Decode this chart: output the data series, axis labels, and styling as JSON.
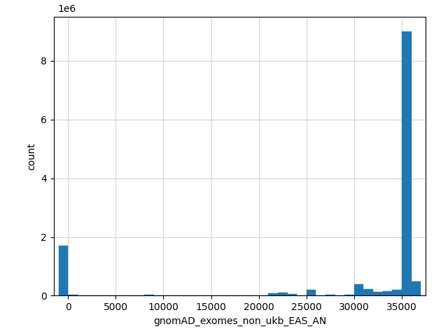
{
  "xlabel": "gnomAD_exomes_non_ukb_EAS_AN",
  "ylabel": "count",
  "bar_color": "#1f77b4",
  "background_color": "#ffffff",
  "grid": true,
  "xlim": [
    -1500,
    37500
  ],
  "ylim": [
    0,
    9500000
  ],
  "xticks": [
    0,
    5000,
    10000,
    15000,
    20000,
    25000,
    30000,
    35000
  ],
  "yticks": [
    0,
    2000000,
    4000000,
    6000000,
    8000000
  ],
  "ytick_labels": [
    "0",
    "2",
    "4",
    "6",
    "8"
  ],
  "offset_label": "1e6",
  "bin_edges": [
    -1000,
    0,
    1000,
    2000,
    3000,
    4000,
    5000,
    6000,
    7000,
    8000,
    9000,
    10000,
    11000,
    12000,
    13000,
    14000,
    15000,
    16000,
    17000,
    18000,
    19000,
    20000,
    21000,
    22000,
    23000,
    24000,
    25000,
    26000,
    27000,
    28000,
    29000,
    30000,
    31000,
    32000,
    33000,
    34000,
    35000,
    36000,
    37000,
    37500
  ],
  "counts": [
    1700000,
    25000,
    0,
    0,
    0,
    0,
    0,
    0,
    0,
    25000,
    0,
    0,
    0,
    0,
    0,
    0,
    0,
    0,
    0,
    0,
    0,
    0,
    80000,
    100000,
    50000,
    0,
    200000,
    0,
    30000,
    0,
    45000,
    380000,
    220000,
    140000,
    150000,
    200000,
    9000000,
    480000,
    0
  ],
  "figsize": [
    6.4,
    4.8
  ],
  "dpi": 100
}
